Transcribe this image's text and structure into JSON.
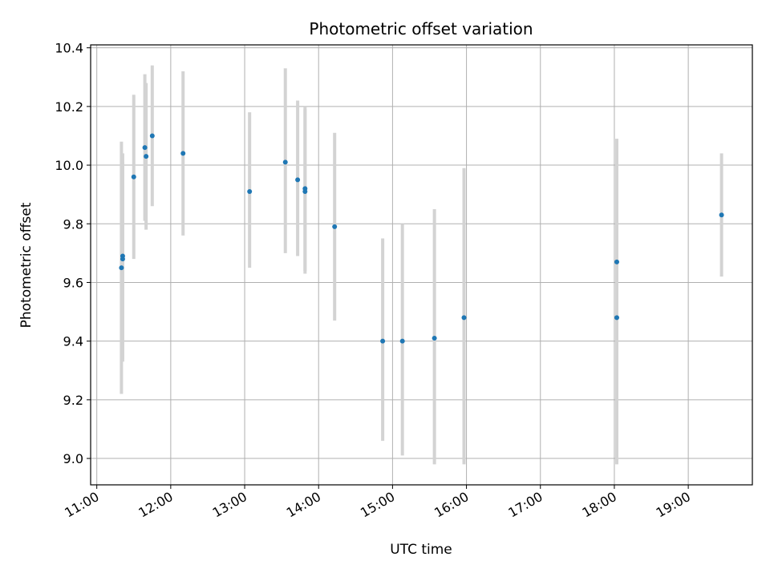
{
  "chart_data": {
    "type": "scatter",
    "title": "Photometric offset variation",
    "xlabel": "UTC time",
    "ylabel": "Photometric offset",
    "xlim": [
      "10:55",
      "19:52"
    ],
    "ylim": [
      8.91,
      10.41
    ],
    "x_ticks": [
      "11:00",
      "12:00",
      "13:00",
      "14:00",
      "15:00",
      "16:00",
      "17:00",
      "18:00",
      "19:00"
    ],
    "y_ticks": [
      "9.0",
      "9.2",
      "9.4",
      "9.6",
      "9.8",
      "10.0",
      "10.2",
      "10.4"
    ],
    "grid": true,
    "legend": "none",
    "colors": {
      "point": "#1f77b4",
      "errorbar": "#d3d3d3",
      "grid": "#b0b0b0"
    },
    "points": [
      {
        "t": "11:20",
        "y": 9.65,
        "lo": 9.22,
        "hi": 10.08
      },
      {
        "t": "11:21",
        "y": 9.69,
        "lo": 9.33,
        "hi": 10.04
      },
      {
        "t": "11:21",
        "y": 9.68,
        "lo": 9.34,
        "hi": 10.01
      },
      {
        "t": "11:30",
        "y": 9.96,
        "lo": 9.68,
        "hi": 10.24
      },
      {
        "t": "11:39",
        "y": 10.06,
        "lo": 9.81,
        "hi": 10.31
      },
      {
        "t": "11:40",
        "y": 10.03,
        "lo": 9.78,
        "hi": 10.28
      },
      {
        "t": "11:45",
        "y": 10.1,
        "lo": 9.86,
        "hi": 10.34
      },
      {
        "t": "12:10",
        "y": 10.04,
        "lo": 9.76,
        "hi": 10.32
      },
      {
        "t": "13:04",
        "y": 9.91,
        "lo": 9.65,
        "hi": 10.18
      },
      {
        "t": "13:33",
        "y": 10.01,
        "lo": 9.7,
        "hi": 10.33
      },
      {
        "t": "13:43",
        "y": 9.95,
        "lo": 9.69,
        "hi": 10.22
      },
      {
        "t": "13:49",
        "y": 9.91,
        "lo": 9.63,
        "hi": 10.2
      },
      {
        "t": "13:49",
        "y": 9.92,
        "lo": 9.64,
        "hi": 10.19
      },
      {
        "t": "14:13",
        "y": 9.79,
        "lo": 9.47,
        "hi": 10.11
      },
      {
        "t": "14:52",
        "y": 9.4,
        "lo": 9.06,
        "hi": 9.75
      },
      {
        "t": "15:08",
        "y": 9.4,
        "lo": 9.01,
        "hi": 9.8
      },
      {
        "t": "15:34",
        "y": 9.41,
        "lo": 8.98,
        "hi": 9.85
      },
      {
        "t": "15:58",
        "y": 9.48,
        "lo": 8.98,
        "hi": 9.99
      },
      {
        "t": "18:02",
        "y": 9.48,
        "lo": 8.98,
        "hi": 9.99
      },
      {
        "t": "18:02",
        "y": 9.67,
        "lo": 9.26,
        "hi": 10.09
      },
      {
        "t": "19:27",
        "y": 9.83,
        "lo": 9.62,
        "hi": 10.04
      }
    ]
  }
}
